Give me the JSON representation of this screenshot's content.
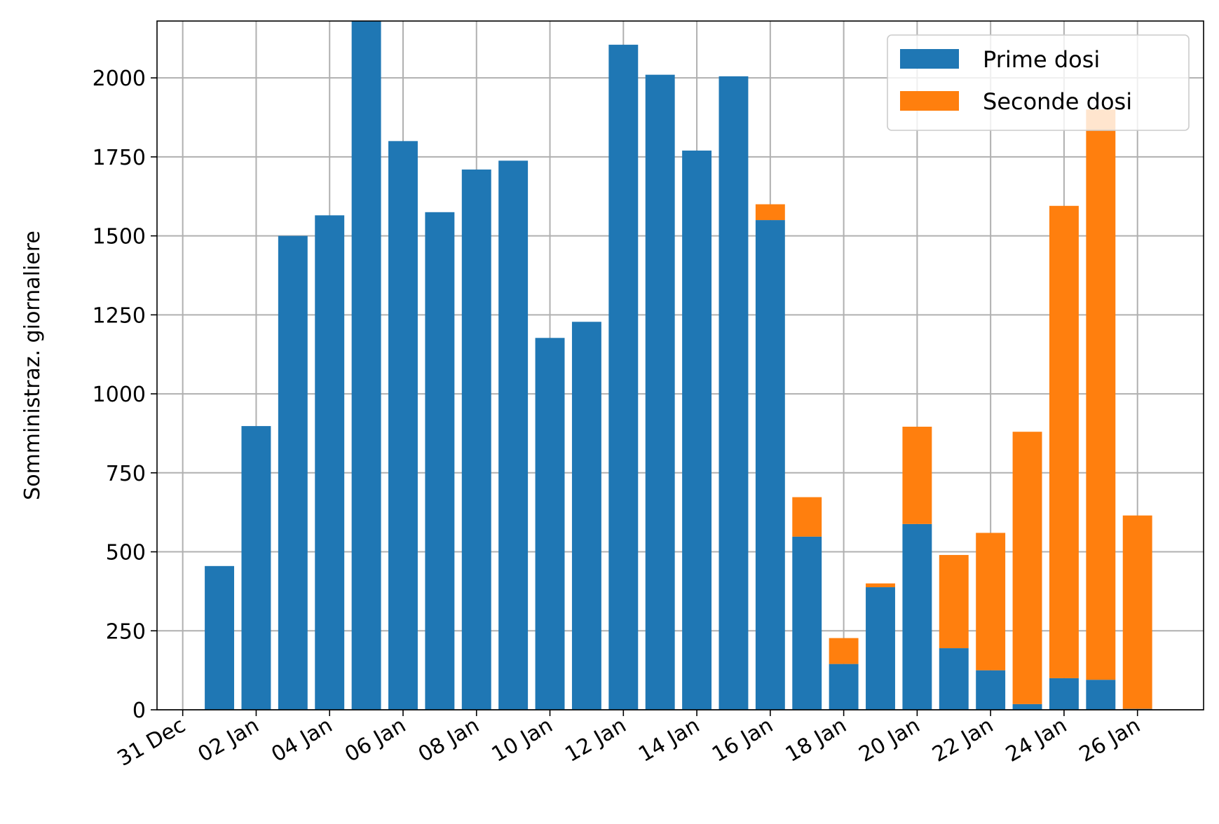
{
  "chart_data": {
    "type": "bar",
    "stacked": true,
    "ylabel": "Somministraz. giornaliere",
    "xlabel": "",
    "ylim": [
      0,
      2180
    ],
    "y_ticks": [
      0,
      250,
      500,
      750,
      1000,
      1250,
      1500,
      1750,
      2000
    ],
    "x_ticks": [
      "31 Dec",
      "02 Jan",
      "04 Jan",
      "06 Jan",
      "08 Jan",
      "10 Jan",
      "12 Jan",
      "14 Jan",
      "16 Jan",
      "18 Jan",
      "20 Jan",
      "22 Jan",
      "24 Jan",
      "26 Jan"
    ],
    "x_tick_day_index": [
      0,
      2,
      4,
      6,
      8,
      10,
      12,
      14,
      16,
      18,
      20,
      22,
      24,
      26
    ],
    "x_day_range": [
      -0.7,
      27.8
    ],
    "categories": [
      "01 Jan",
      "02 Jan",
      "03 Jan",
      "04 Jan",
      "05 Jan",
      "06 Jan",
      "07 Jan",
      "08 Jan",
      "09 Jan",
      "10 Jan",
      "11 Jan",
      "12 Jan",
      "13 Jan",
      "14 Jan",
      "15 Jan",
      "16 Jan",
      "17 Jan",
      "18 Jan",
      "19 Jan",
      "20 Jan",
      "21 Jan",
      "22 Jan",
      "23 Jan",
      "24 Jan",
      "25 Jan",
      "26 Jan"
    ],
    "category_day_index": [
      1,
      2,
      3,
      4,
      5,
      6,
      7,
      8,
      9,
      10,
      11,
      12,
      13,
      14,
      15,
      16,
      17,
      18,
      19,
      20,
      21,
      22,
      23,
      24,
      25,
      26
    ],
    "series": [
      {
        "name": "Prime dosi",
        "color": "#1f77b4",
        "values": [
          455,
          898,
          1500,
          1565,
          2180,
          1800,
          1575,
          1710,
          1738,
          1177,
          1228,
          2105,
          2010,
          1770,
          2005,
          1550,
          548,
          145,
          388,
          588,
          195,
          125,
          18,
          100,
          95,
          3
        ]
      },
      {
        "name": "Seconde dosi",
        "color": "#ff7f0e",
        "values": [
          0,
          0,
          0,
          0,
          0,
          0,
          0,
          0,
          0,
          0,
          0,
          0,
          0,
          0,
          0,
          50,
          125,
          82,
          12,
          308,
          295,
          435,
          862,
          1495,
          1805,
          612
        ]
      }
    ],
    "grid": true,
    "legend_position": "top-right"
  }
}
